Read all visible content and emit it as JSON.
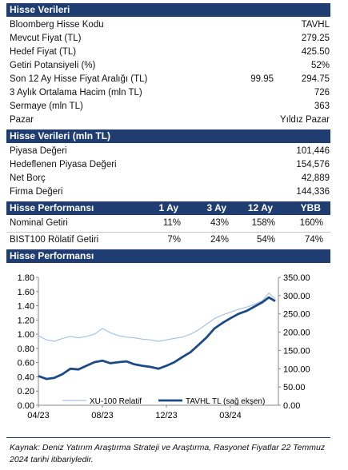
{
  "section1": {
    "title": "Hisse Verileri",
    "rows": [
      {
        "label": "Bloomberg Hisse Kodu",
        "value": "TAVHL"
      },
      {
        "label": "Mevcut Fiyat (TL)",
        "value": "279.25"
      },
      {
        "label": "Hedef Fiyat (TL)",
        "value": "425.50"
      },
      {
        "label": "Getiri Potansiyeli (%)",
        "value": "52%"
      },
      {
        "label": "Son 12 Ay Hisse Fiyat Aralığı (TL)",
        "low": "99.95",
        "value": "294.75"
      },
      {
        "label": "3 Aylık Ortalama Hacim (mln TL)",
        "value": "726"
      },
      {
        "label": "Sermaye (mln TL)",
        "value": "363"
      },
      {
        "label": "Pazar",
        "value": "Yıldız Pazar"
      }
    ]
  },
  "section2": {
    "title": "Hisse Verileri (mln TL)",
    "rows": [
      {
        "label": "Piyasa Değeri",
        "value": "101,446"
      },
      {
        "label": "Hedeflenen Piyasa Değeri",
        "value": "154,576"
      },
      {
        "label": "Net Borç",
        "value": "42,889"
      },
      {
        "label": "Firma Değeri",
        "value": "144,336"
      }
    ]
  },
  "section3": {
    "title": "Hisse Performansı",
    "columns": [
      "1 Ay",
      "3 Ay",
      "12 Ay",
      "YBB"
    ],
    "rows": [
      {
        "label": "Nominal Getiri",
        "values": [
          "11%",
          "43%",
          "158%",
          "160%"
        ]
      },
      {
        "label": "BIST100 Rölatif Getiri",
        "values": [
          "7%",
          "24%",
          "54%",
          "74%"
        ]
      }
    ]
  },
  "section4": {
    "title": "Hisse Performansı"
  },
  "chart_data": {
    "type": "line",
    "title": "",
    "x_ticks": [
      "04/23",
      "08/23",
      "12/23",
      "03/24"
    ],
    "y_left_ticks": [
      "0.00",
      "0.20",
      "0.40",
      "0.60",
      "0.80",
      "1.00",
      "1.20",
      "1.40",
      "1.60",
      "1.80"
    ],
    "y_right_ticks": [
      "0.00",
      "50.00",
      "100.00",
      "150.00",
      "200.00",
      "250.00",
      "300.00",
      "350.00"
    ],
    "y_left_range": [
      0,
      1.8
    ],
    "y_right_range": [
      0,
      350
    ],
    "x_range": [
      0,
      15
    ],
    "series": [
      {
        "name": "XU-100 Relatif",
        "axis": "left",
        "color": "#a9c3e3",
        "x": [
          0,
          0.5,
          1,
          1.5,
          2,
          2.5,
          3,
          3.5,
          4,
          4.5,
          5,
          5.5,
          6,
          6.5,
          7,
          7.5,
          8,
          8.5,
          9,
          9.5,
          10,
          10.5,
          11,
          11.5,
          12,
          12.5,
          13,
          13.5,
          14,
          14.4,
          14.8
        ],
        "y": [
          0.98,
          0.92,
          0.9,
          0.94,
          0.97,
          0.95,
          0.97,
          1.0,
          1.08,
          1.02,
          0.98,
          0.96,
          0.95,
          0.93,
          0.92,
          0.9,
          0.92,
          0.94,
          0.96,
          1.0,
          1.06,
          1.14,
          1.22,
          1.27,
          1.31,
          1.35,
          1.38,
          1.42,
          1.47,
          1.58,
          1.5
        ]
      },
      {
        "name": "TAVHL TL (sağ ekşen)",
        "axis": "right",
        "color": "#1c4a86",
        "x": [
          0,
          0.5,
          1,
          1.5,
          2,
          2.5,
          3,
          3.5,
          4,
          4.5,
          5,
          5.5,
          6,
          6.5,
          7,
          7.5,
          8,
          8.5,
          9,
          9.5,
          10,
          10.5,
          11,
          11.5,
          12,
          12.5,
          13,
          13.5,
          14,
          14.4,
          14.8
        ],
        "y": [
          80,
          72,
          75,
          85,
          100,
          98,
          108,
          118,
          122,
          115,
          118,
          120,
          112,
          108,
          105,
          100,
          108,
          118,
          132,
          145,
          165,
          185,
          210,
          225,
          238,
          250,
          258,
          270,
          282,
          295,
          285
        ]
      }
    ]
  },
  "footnote": "Kaynak: Deniz Yatırım Araştırma Strateji ve Araştırma, Rasyonet Fiyatlar 22 Temmuz 2024 tarihi itibariyledir."
}
